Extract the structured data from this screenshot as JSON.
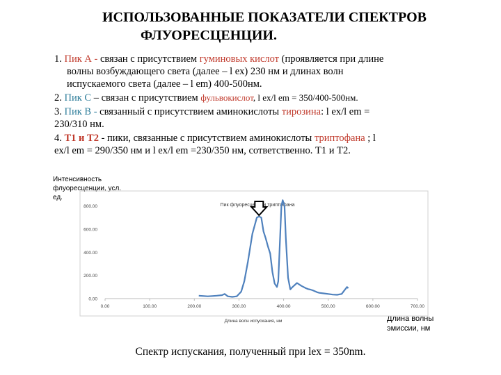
{
  "title": {
    "line1": "ИСПОЛЬЗОВАННЫЕ ПОКАЗАТЕЛИ СПЕКТРОВ",
    "line2": "ФЛУОРЕСЦЕНЦИИ."
  },
  "items": [
    {
      "num": "1.",
      "peak": "Пик А - ",
      "text1": "связан с присутствием ",
      "highlight": "гуминовых кислот",
      "text2": " (проявляется при длине",
      "line2": "волны возбуждающего света (далее – l ex) 230 нм и длинах волн",
      "line3": "испускаемого света (далее – l em) 400-500нм."
    },
    {
      "num": "2.",
      "peak": "Пик С",
      "text1": " – связан с присутствием ",
      "highlight": "фульвокислот",
      "text2": ", l ex/l em = 350/400-500нм."
    },
    {
      "num": "3.",
      "peak": "Пик В - ",
      "text1": "связанный с присутствием аминокислоты ",
      "highlight": "тирозина",
      "text2": ": l ex/l em =",
      "line2": "230/310 нм."
    },
    {
      "num": "4.",
      "peak": "Т1 и Т2",
      "text1": " - пики, связанные с присутствием аминокислоты ",
      "highlight": "триптофана",
      "text2": " ; l",
      "line2": "ex/l em = 290/350 нм и l ex/l em =230/350 нм, сответственно. Т1 и Т2."
    }
  ],
  "chart_labels": {
    "ylabel": "Интенсивность флуоресценции, усл. ед.",
    "xlabel": "Длина волны эмиссии, нм"
  },
  "caption": "Спектр испускания, полученный при lex = 350nm.",
  "chart_data": {
    "type": "line",
    "title": "Пик флуоресценции триптофана",
    "xlabel": "Длина волн испускания, нм",
    "ylabel": "",
    "x_ticks": [
      "0.00",
      "100.00",
      "200.00",
      "300.00",
      "400.00",
      "500.00",
      "600.00",
      "700.00"
    ],
    "y_ticks": [
      "0.00",
      "200.00",
      "400.00",
      "600.00",
      "800.00"
    ],
    "xlim": [
      0,
      700
    ],
    "ylim": [
      0,
      900
    ],
    "series": [
      {
        "x": [
          210,
          230,
          240,
          250,
          262,
          268,
          275,
          285,
          295,
          305,
          312,
          320,
          330,
          340,
          345,
          350,
          355,
          360,
          365,
          370,
          375,
          380,
          385,
          388,
          392,
          395,
          398,
          402,
          405,
          410,
          415,
          420,
          430,
          440,
          450,
          455,
          460,
          465,
          475,
          480,
          490,
          500,
          510,
          520,
          530,
          536,
          542,
          545
        ],
        "y": [
          25,
          20,
          22,
          25,
          30,
          40,
          20,
          15,
          20,
          60,
          150,
          320,
          560,
          700,
          710,
          700,
          580,
          520,
          450,
          390,
          230,
          130,
          100,
          150,
          510,
          800,
          850,
          800,
          520,
          180,
          80,
          100,
          135,
          110,
          90,
          82,
          78,
          72,
          55,
          50,
          45,
          40,
          35,
          33,
          40,
          70,
          100,
          90
        ]
      }
    ],
    "annotation": "arrow pointing to peak at ~350 nm",
    "grid": false
  }
}
